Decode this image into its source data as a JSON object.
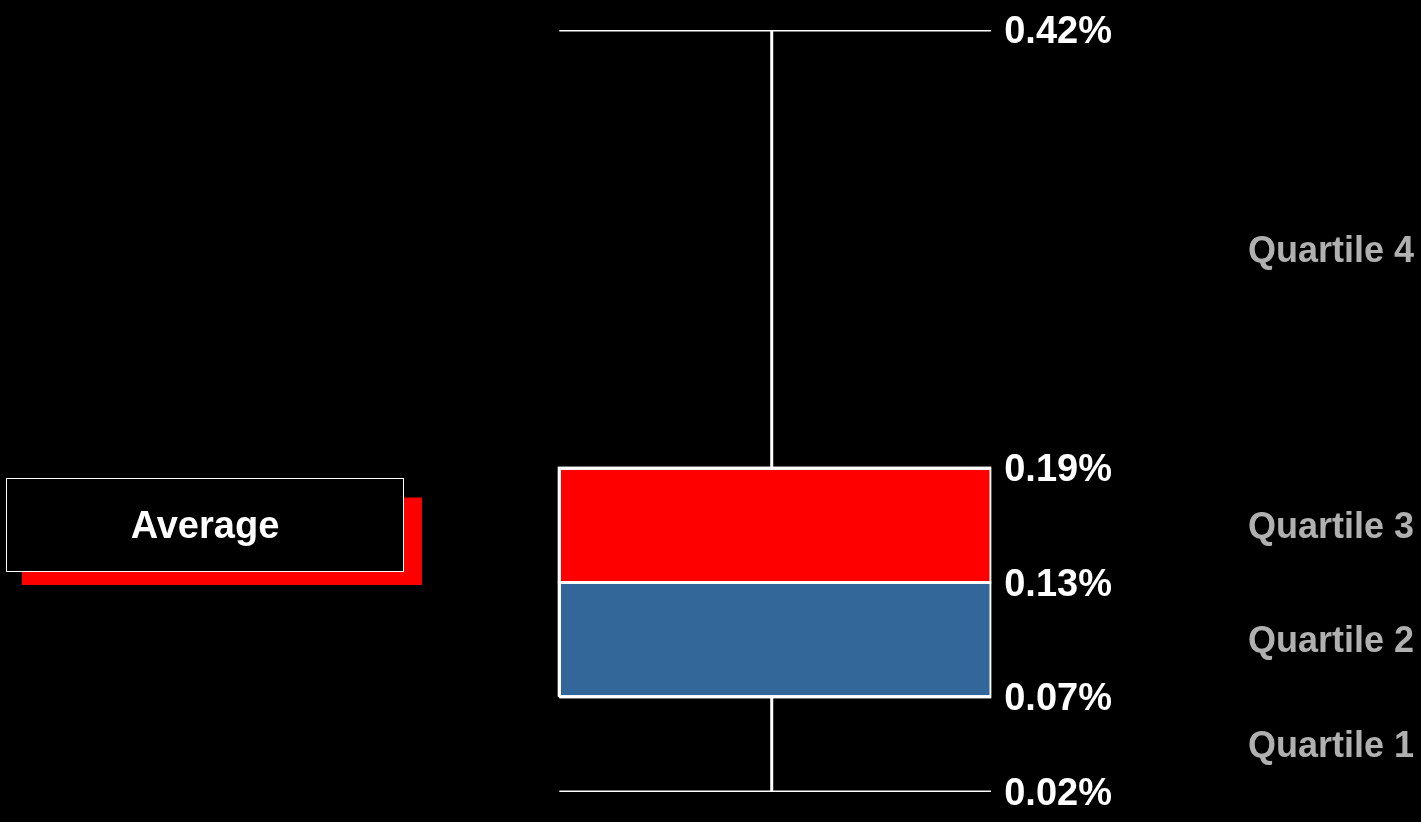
{
  "chart_data": {
    "type": "box",
    "series": [
      {
        "boxes": [
          {
            "low": 0.02,
            "q1": 0.07,
            "median": 0.13,
            "q3": 0.19,
            "high": 0.42
          }
        ]
      }
    ],
    "bands": [
      {
        "axis": "y",
        "from": 0.07,
        "to": 0.13,
        "color": "#336699"
      },
      {
        "axis": "y",
        "from": 0.13,
        "to": 0.19,
        "color": "#ff0000"
      }
    ],
    "ylim": [
      0.02,
      0.42
    ],
    "yticks": [
      {
        "value": 0.02,
        "label": "0.02%"
      },
      {
        "value": 0.07,
        "label": "0.07%"
      },
      {
        "value": 0.13,
        "label": "0.13%"
      },
      {
        "value": 0.19,
        "label": "0.19%"
      },
      {
        "value": 0.42,
        "label": "0.42%"
      }
    ],
    "annotations": [
      "Average",
      "Quartile 1",
      "Quartile 2",
      "Quartile 3",
      "Quartile 4"
    ]
  }
}
